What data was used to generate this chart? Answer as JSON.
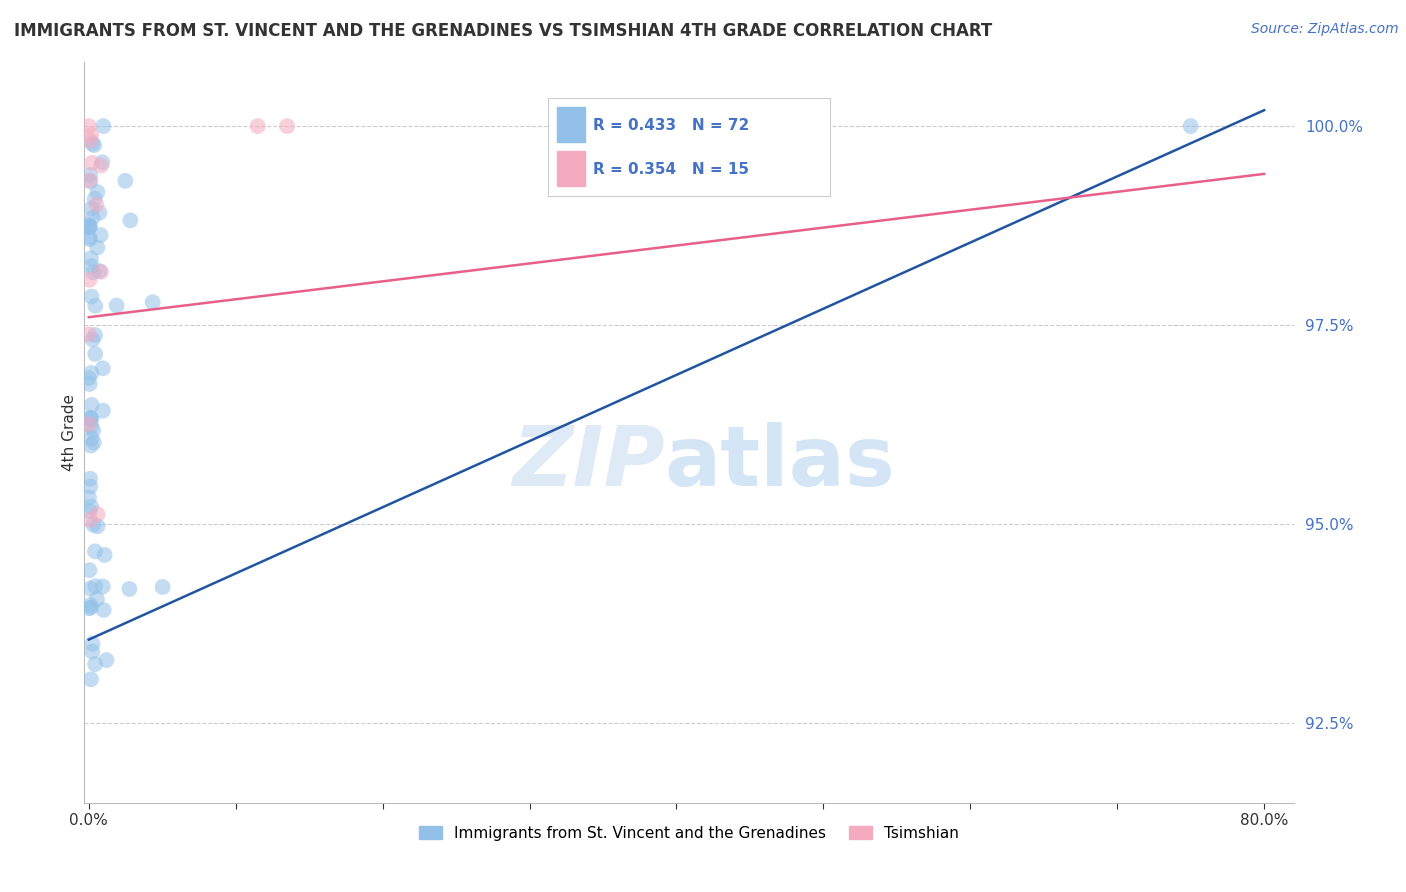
{
  "title": "IMMIGRANTS FROM ST. VINCENT AND THE GRENADINES VS TSIMSHIAN 4TH GRADE CORRELATION CHART",
  "source": "Source: ZipAtlas.com",
  "ylabel": "4th Grade",
  "xlim_min": -0.003,
  "xlim_max": 0.82,
  "ylim_min": 0.915,
  "ylim_max": 1.008,
  "blue_color": "#92C0E8",
  "blue_edge_color": "#92C0E8",
  "pink_color": "#F4AABF",
  "pink_edge_color": "#F4AABF",
  "blue_line_color": "#2255A0",
  "pink_line_color": "#E8608A",
  "grid_color": "#CCCCCC",
  "ytick_color": "#4472C4",
  "xtick_color": "#333333",
  "ylabel_color": "#333333",
  "title_color": "#333333",
  "source_color": "#4472C4",
  "legend_R1": "R = 0.433",
  "legend_N1": "N = 72",
  "legend_R2": "R = 0.354",
  "legend_N2": "N = 15",
  "legend_label1": "Immigrants from St. Vincent and the Grenadines",
  "legend_label2": "Tsimshian",
  "yticks": [
    0.925,
    0.95,
    0.975,
    1.0
  ],
  "yticklabels": [
    "92.5%",
    "95.0%",
    "97.5%",
    "100.0%"
  ],
  "grid_yticks": [
    0.925,
    0.95,
    0.975,
    1.0
  ],
  "blue_line_x0": 0.0,
  "blue_line_x1": 0.8,
  "blue_line_y0": 0.9355,
  "blue_line_y1": 1.002,
  "pink_line_x0": 0.0,
  "pink_line_x1": 0.8,
  "pink_line_y0": 0.976,
  "pink_line_y1": 0.994,
  "marker_size": 130,
  "marker_alpha": 0.55
}
